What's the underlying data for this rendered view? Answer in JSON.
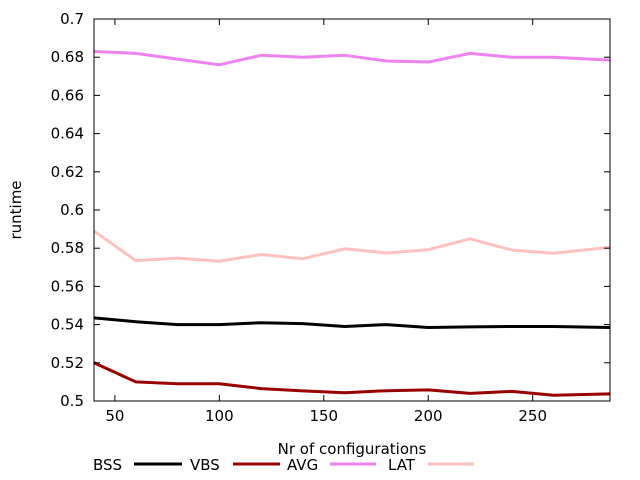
{
  "chart_data": {
    "type": "line",
    "xlabel": "Nr of configurations",
    "ylabel": "runtime",
    "xlim": [
      40,
      287
    ],
    "ylim": [
      0.5,
      0.7
    ],
    "x_ticks": [
      50,
      100,
      150,
      200,
      250
    ],
    "x_tick_labels": [
      "50",
      "100",
      "150",
      "200",
      "250"
    ],
    "y_ticks": [
      0.5,
      0.52,
      0.54,
      0.56,
      0.58,
      0.6,
      0.62,
      0.64,
      0.66,
      0.68,
      0.7
    ],
    "y_tick_labels": [
      "0.5",
      "0.52",
      "0.54",
      "0.56",
      "0.58",
      "0.6",
      "0.62",
      "0.64",
      "0.66",
      "0.68",
      "0.7"
    ],
    "grid": false,
    "legend_position": "bottom",
    "x": [
      40,
      60,
      80,
      100,
      120,
      140,
      160,
      180,
      200,
      220,
      240,
      260,
      287
    ],
    "series": [
      {
        "name": "BSS",
        "color": "#000000",
        "values": [
          0.5435,
          0.5415,
          0.54,
          0.54,
          0.541,
          0.5405,
          0.539,
          0.54,
          0.5385,
          0.5388,
          0.539,
          0.539,
          0.5385
        ]
      },
      {
        "name": "VBS",
        "color": "#990000",
        "values": [
          0.52,
          0.51,
          0.509,
          0.509,
          0.5065,
          0.5053,
          0.5043,
          0.5054,
          0.5058,
          0.504,
          0.505,
          0.503,
          0.5037
        ]
      },
      {
        "name": "AVG",
        "color": "#ee82ee",
        "values": [
          0.683,
          0.682,
          0.679,
          0.676,
          0.681,
          0.68,
          0.681,
          0.678,
          0.6775,
          0.682,
          0.68,
          0.68,
          0.6785
        ]
      },
      {
        "name": "LAT",
        "color": "#ffc0c0",
        "values": [
          0.589,
          0.5735,
          0.5748,
          0.5732,
          0.5767,
          0.5745,
          0.5797,
          0.5775,
          0.5792,
          0.5849,
          0.579,
          0.5774,
          0.5805
        ]
      }
    ]
  }
}
